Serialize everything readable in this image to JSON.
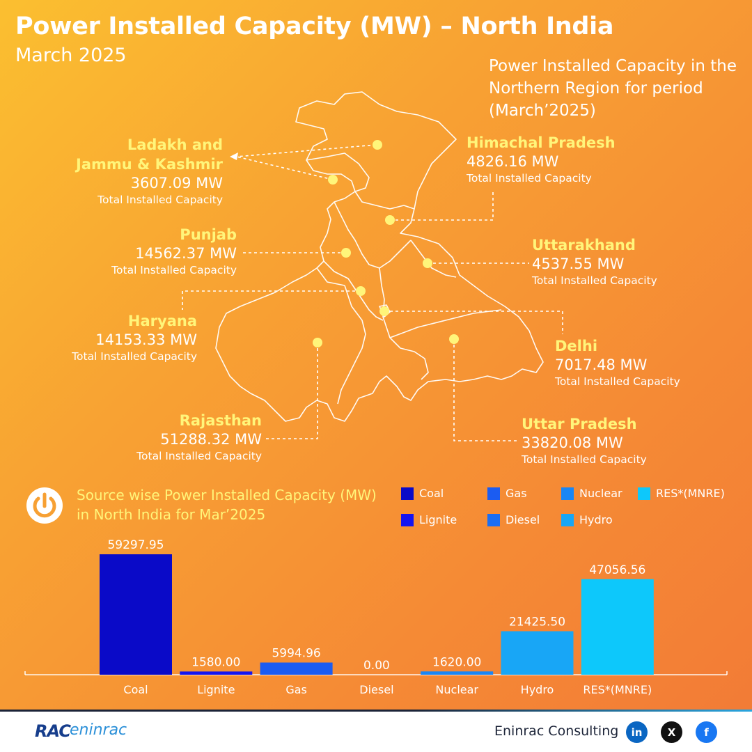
{
  "header": {
    "title": "Power Installed Capacity (MW) – North India",
    "subtitle": "March 2025",
    "period_note": "Power Installed Capacity in the Northern Region for period (March’2025)"
  },
  "regions": [
    {
      "key": "jk",
      "name_line1": "Ladakh and",
      "name_line2": "Jammu & Kashmir",
      "value": "3607.09 MW",
      "note": "Total Installed Capacity"
    },
    {
      "key": "hp",
      "name_line1": "Himachal Pradesh",
      "value": "4826.16 MW",
      "note": "Total Installed Capacity"
    },
    {
      "key": "pb",
      "name_line1": "Punjab",
      "value": "14562.37 MW",
      "note": "Total Installed Capacity"
    },
    {
      "key": "uk",
      "name_line1": "Uttarakhand",
      "value": "4537.55 MW",
      "note": "Total Installed Capacity"
    },
    {
      "key": "hr",
      "name_line1": "Haryana",
      "value": "14153.33 MW",
      "note": "Total Installed Capacity"
    },
    {
      "key": "dl",
      "name_line1": "Delhi",
      "value": "7017.48 MW",
      "note": "Total Installed Capacity"
    },
    {
      "key": "rj",
      "name_line1": "Rajasthan",
      "value": "51288.32 MW",
      "note": "Total Installed Capacity"
    },
    {
      "key": "up",
      "name_line1": "Uttar Pradesh",
      "value": "33820.08 MW",
      "note": "Total Installed Capacity"
    }
  ],
  "source_section": {
    "title": "Source wise Power Installed Capacity (MW) in North India for Mar’2025",
    "icon": "power-icon"
  },
  "legend": [
    {
      "label": "Coal",
      "color": "#0a0ac8"
    },
    {
      "label": "Gas",
      "color": "#1b5cf2"
    },
    {
      "label": "Nuclear",
      "color": "#1a86f5"
    },
    {
      "label": "RES*(MNRE)",
      "color": "#0dc8fb"
    },
    {
      "label": "Lignite",
      "color": "#1414f0"
    },
    {
      "label": "Diesel",
      "color": "#1a6ef3"
    },
    {
      "label": "Hydro",
      "color": "#18a6f6"
    }
  ],
  "chart_data": {
    "type": "bar",
    "categories": [
      "Coal",
      "Lignite",
      "Gas",
      "Diesel",
      "Nuclear",
      "Hydro",
      "RES*(MNRE)"
    ],
    "values": [
      59297.95,
      1580.0,
      5994.96,
      0.0,
      1620.0,
      21425.5,
      47056.56
    ],
    "value_labels": [
      "59297.95",
      "1580.00",
      "5994.96",
      "0.00",
      "1620.00",
      "21425.50",
      "47056.56"
    ],
    "colors": [
      "#0a0ac8",
      "#1414f0",
      "#1b5cf2",
      "#1a6ef3",
      "#1a86f5",
      "#18a6f6",
      "#0dc8fb"
    ],
    "title": "",
    "xlabel": "",
    "ylabel": "",
    "ylim": [
      0,
      60000
    ]
  },
  "footer": {
    "logo_rac": "RAC",
    "logo_eninrac": "eninrac",
    "company": "Eninrac Consulting",
    "social": [
      {
        "icon": "linkedin-icon",
        "label": "in",
        "color": "#0a66c2"
      },
      {
        "icon": "x-icon",
        "label": "X",
        "color": "#111111"
      },
      {
        "icon": "facebook-icon",
        "label": "f",
        "color": "#1877f2"
      }
    ]
  }
}
